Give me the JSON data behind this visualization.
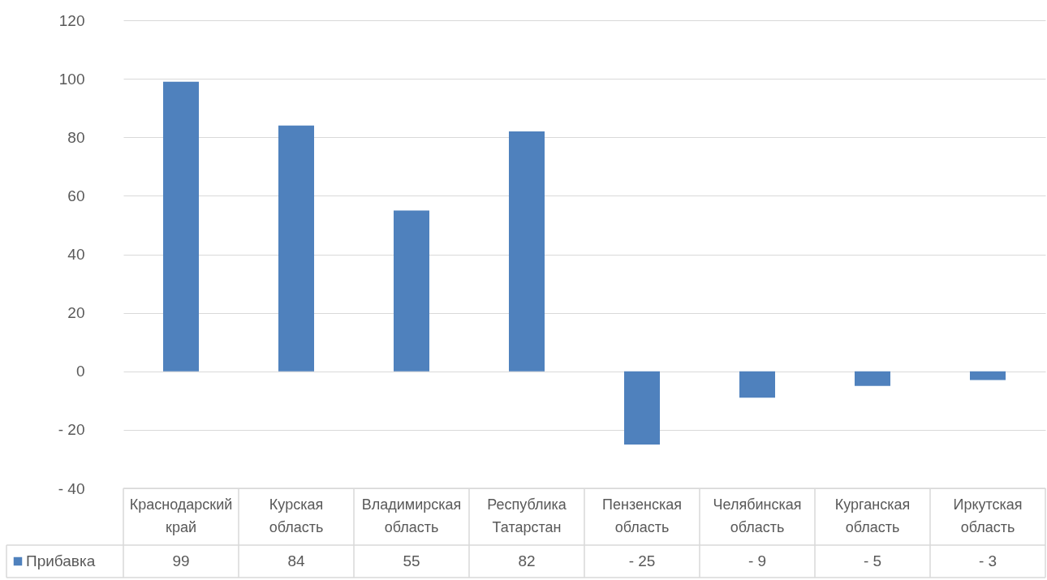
{
  "chart_data": {
    "type": "bar",
    "categories": [
      "Краснодарский край",
      "Курская область",
      "Владимирская область",
      "Республика Татарстан",
      "Пензенская область",
      "Челябинская область",
      "Курганская область",
      "Иркутская область"
    ],
    "series": [
      {
        "name": "Прибавка",
        "color": "#4f81bd",
        "values": [
          99,
          84,
          55,
          82,
          -25,
          -9,
          -5,
          -3
        ],
        "value_labels": [
          "99",
          "84",
          "55",
          "82",
          "- 25",
          "- 9",
          "- 5",
          "- 3"
        ]
      }
    ],
    "ylim": [
      -40,
      120
    ],
    "yticks": [
      {
        "value": -40,
        "label": "- 40"
      },
      {
        "value": -20,
        "label": "- 20"
      },
      0,
      20,
      40,
      60,
      80,
      100,
      120
    ],
    "grid": "y",
    "legend": "bottom"
  }
}
